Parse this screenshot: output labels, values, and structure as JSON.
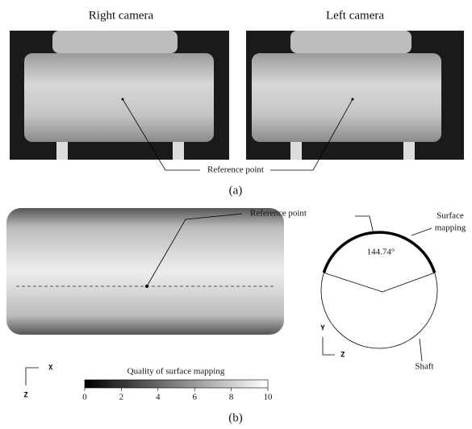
{
  "panel_a": {
    "right_title": "Right camera",
    "left_title": "Left camera",
    "reference_label": "Reference point",
    "caption": "(a)"
  },
  "panel_b": {
    "reference_label": "Reference point",
    "surface_label_line1": "Surface",
    "surface_label_line2": "mapping",
    "angle_label": "144.74°",
    "shaft_label": "Shaft",
    "section_axis_y": "Y",
    "section_axis_z": "Z",
    "map_axis_x": "X",
    "map_axis_z": "Z",
    "colorbar": {
      "label": "Quality of surface mapping",
      "ticks": [
        0,
        2,
        4,
        6,
        8,
        10
      ]
    },
    "caption": "(b)"
  }
}
